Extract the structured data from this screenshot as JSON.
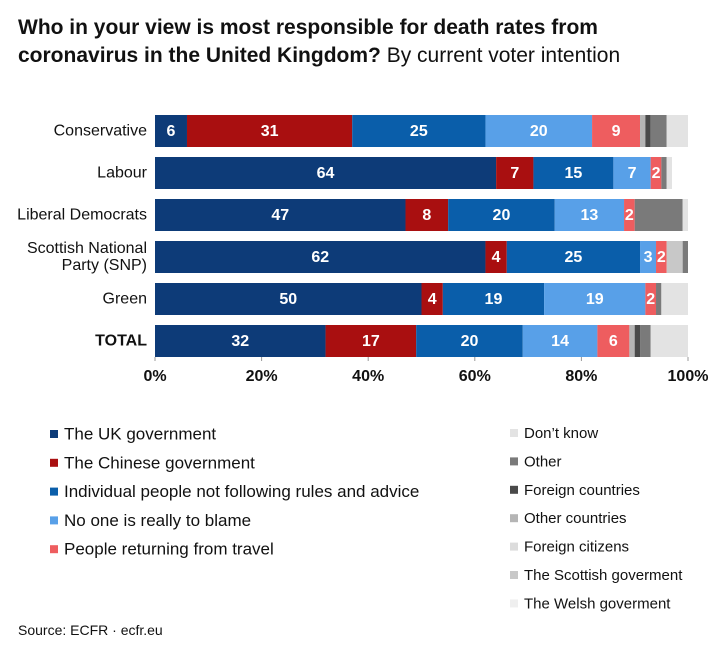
{
  "chart_data": {
    "type": "stacked-barh",
    "title": "Who in your view is most responsible for death rates from coronavirus in the United Kingdom?",
    "subtitle": "By current voter intention",
    "source": "Source:  ECFR · ecfr.eu",
    "categories": [
      "Conservative",
      "Labour",
      "Liberal Democrats",
      "Scottish National Party (SNP)",
      "Green",
      "TOTAL"
    ],
    "series": [
      {
        "name": "The UK government",
        "color": "#0d3b78",
        "show_labels": true,
        "values": [
          6,
          64,
          47,
          62,
          50,
          32
        ]
      },
      {
        "name": "The Chinese government",
        "color": "#a90f10",
        "show_labels": true,
        "values": [
          31,
          7,
          8,
          4,
          4,
          17
        ]
      },
      {
        "name": "Individual people not following rules and advice",
        "color": "#0a5eaa",
        "show_labels": true,
        "values": [
          25,
          15,
          20,
          25,
          19,
          20
        ]
      },
      {
        "name": "No one is really to blame",
        "color": "#58a0e8",
        "show_labels": true,
        "values": [
          20,
          7,
          13,
          3,
          19,
          14
        ]
      },
      {
        "name": "People returning from travel",
        "color": "#ee5d5f",
        "show_labels": true,
        "values": [
          9,
          2,
          2,
          2,
          2,
          6
        ]
      },
      {
        "name": "The Welsh goverment",
        "color": "#efefef",
        "show_labels": false,
        "values": [
          0,
          0,
          0,
          0,
          0,
          0
        ]
      },
      {
        "name": "The Scottish goverment",
        "color": "#c8c8c8",
        "show_labels": false,
        "values": [
          0,
          0,
          0,
          3,
          0,
          0
        ]
      },
      {
        "name": "Foreign citizens",
        "color": "#dcdcdc",
        "show_labels": false,
        "values": [
          0,
          0,
          0,
          0,
          0,
          0
        ]
      },
      {
        "name": "Other countries",
        "color": "#b5b5b5",
        "show_labels": false,
        "values": [
          1,
          0,
          0,
          0,
          0,
          1
        ]
      },
      {
        "name": "Foreign countries",
        "color": "#4a4a4a",
        "show_labels": false,
        "values": [
          1,
          0,
          0,
          0,
          0,
          1
        ]
      },
      {
        "name": "Other",
        "color": "#7a7a7a",
        "show_labels": false,
        "values": [
          3,
          1,
          9,
          1,
          1,
          2
        ]
      },
      {
        "name": "Don’t know",
        "color": "#e3e3e3",
        "show_labels": false,
        "values": [
          4,
          1,
          1,
          0,
          5,
          7
        ]
      }
    ],
    "xlim": [
      0,
      100
    ],
    "xticks": [
      {
        "value": 0,
        "label": "0%"
      },
      {
        "value": 20,
        "label": "20%"
      },
      {
        "value": 40,
        "label": "40%"
      },
      {
        "value": 60,
        "label": "60%"
      },
      {
        "value": 80,
        "label": "80%"
      },
      {
        "value": 100,
        "label": "100%"
      }
    ],
    "grid": false
  }
}
